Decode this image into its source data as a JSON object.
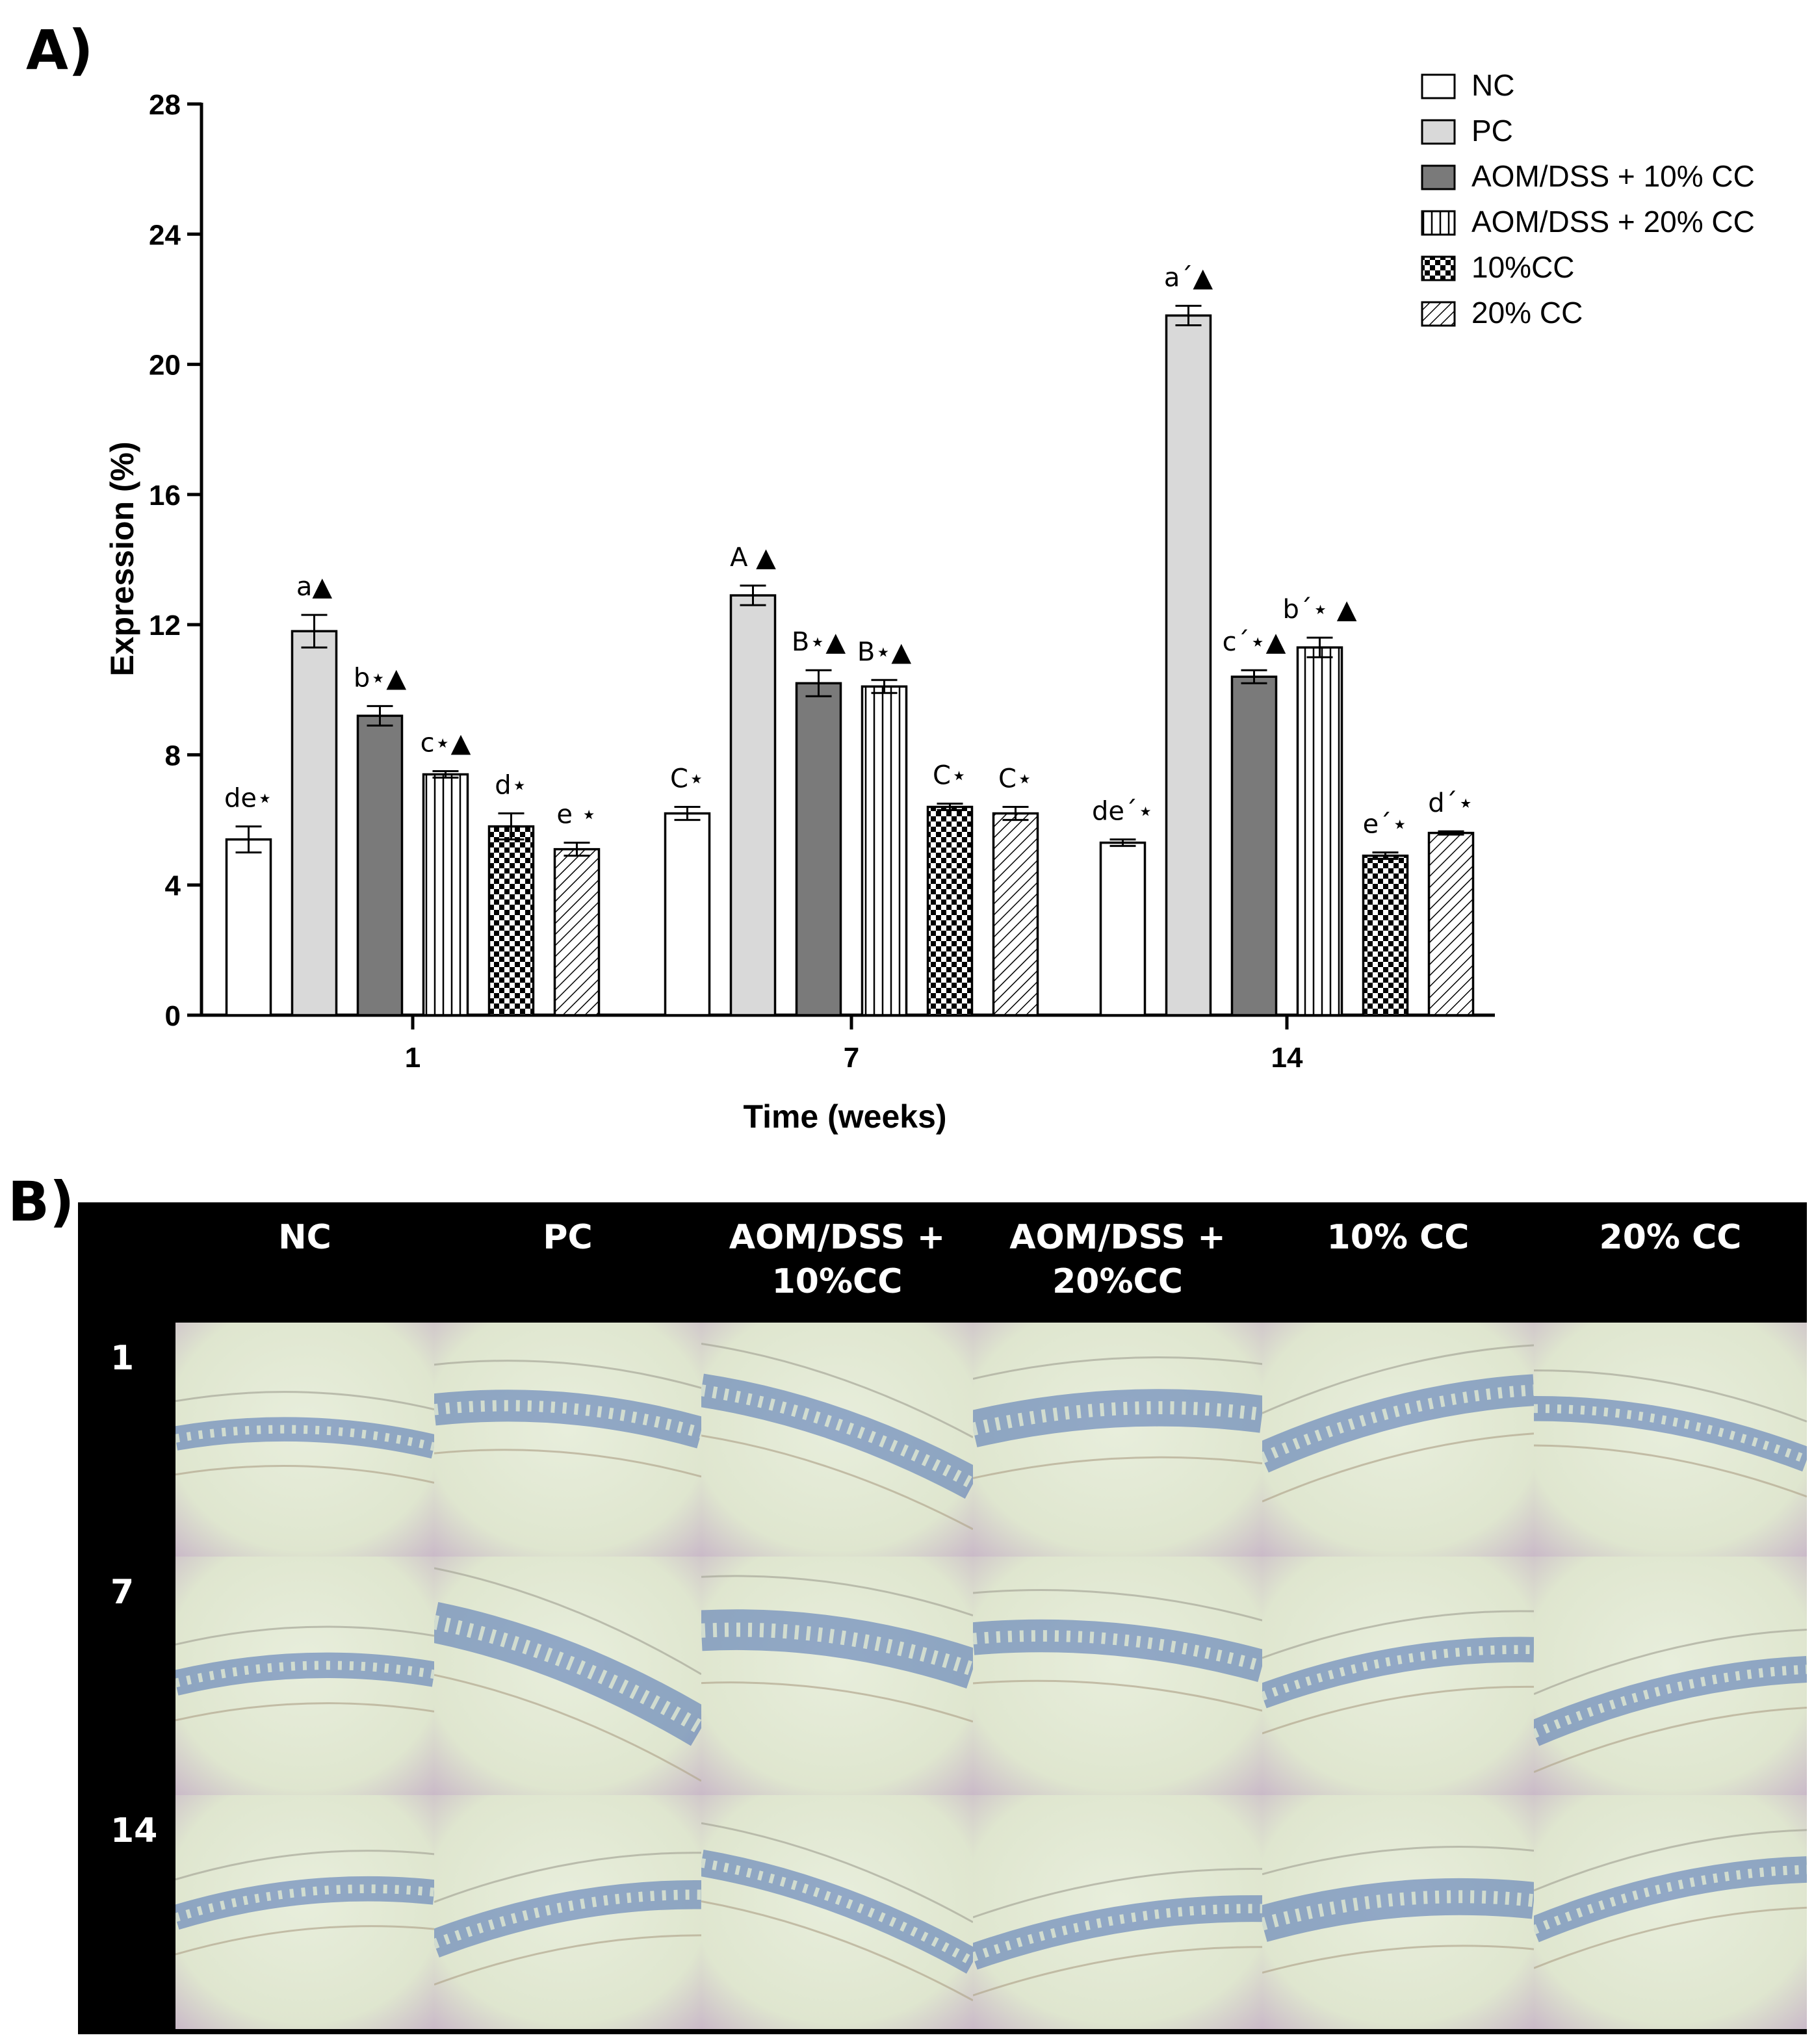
{
  "panels": {
    "a_label": "A)",
    "b_label": "B)"
  },
  "chart_data": {
    "type": "bar",
    "title": "",
    "xlabel": "Time (weeks)",
    "ylabel": "Expression (%)",
    "ylim": [
      0,
      28
    ],
    "yticks": [
      0,
      4,
      8,
      12,
      16,
      20,
      24,
      28
    ],
    "categories": [
      "1",
      "7",
      "14"
    ],
    "legend_position": "top-right",
    "series": [
      {
        "name": "NC",
        "pattern": "white",
        "values": [
          5.4,
          6.2,
          5.3
        ],
        "errors": [
          0.4,
          0.2,
          0.1
        ],
        "labels": [
          "de⋆",
          "C⋆",
          "de´⋆"
        ]
      },
      {
        "name": "PC",
        "pattern": "lightgray",
        "values": [
          11.8,
          12.9,
          21.5
        ],
        "errors": [
          0.5,
          0.3,
          0.3
        ],
        "labels": [
          "a▲",
          "A ▲",
          "a´▲"
        ]
      },
      {
        "name": "AOM/DSS + 10% CC",
        "pattern": "darkgray",
        "values": [
          9.2,
          10.2,
          10.4
        ],
        "errors": [
          0.3,
          0.4,
          0.2
        ],
        "labels": [
          "b⋆▲",
          "B⋆▲",
          "c´⋆▲"
        ]
      },
      {
        "name": "AOM/DSS + 20% CC",
        "pattern": "vertical",
        "values": [
          7.4,
          10.1,
          11.3
        ],
        "errors": [
          0.1,
          0.2,
          0.3
        ],
        "labels": [
          "c⋆▲",
          "B⋆▲",
          "b´⋆ ▲"
        ]
      },
      {
        "name": "10%CC",
        "pattern": "checker",
        "values": [
          5.8,
          6.4,
          4.9
        ],
        "errors": [
          0.4,
          0.1,
          0.1
        ],
        "labels": [
          "d⋆",
          "C⋆",
          "e´⋆"
        ]
      },
      {
        "name": "20% CC",
        "pattern": "diagonal",
        "values": [
          5.1,
          6.2,
          5.6
        ],
        "errors": [
          0.2,
          0.2,
          0.05
        ],
        "labels": [
          "e ⋆",
          "C⋆",
          "d´⋆"
        ]
      }
    ]
  },
  "histology": {
    "column_headers": [
      "NC",
      "PC",
      "AOM/DSS +\n10%CC",
      "AOM/DSS +\n20%CC",
      "10% CC",
      "20% CC"
    ],
    "row_headers": [
      "1",
      "7",
      "14"
    ]
  },
  "colors": {
    "light_bar": "#d9d9d9",
    "dark_bar": "#7a7a7a",
    "tissue_background": "#dfe6cf",
    "crypt_stain": "#4a6fb5"
  }
}
